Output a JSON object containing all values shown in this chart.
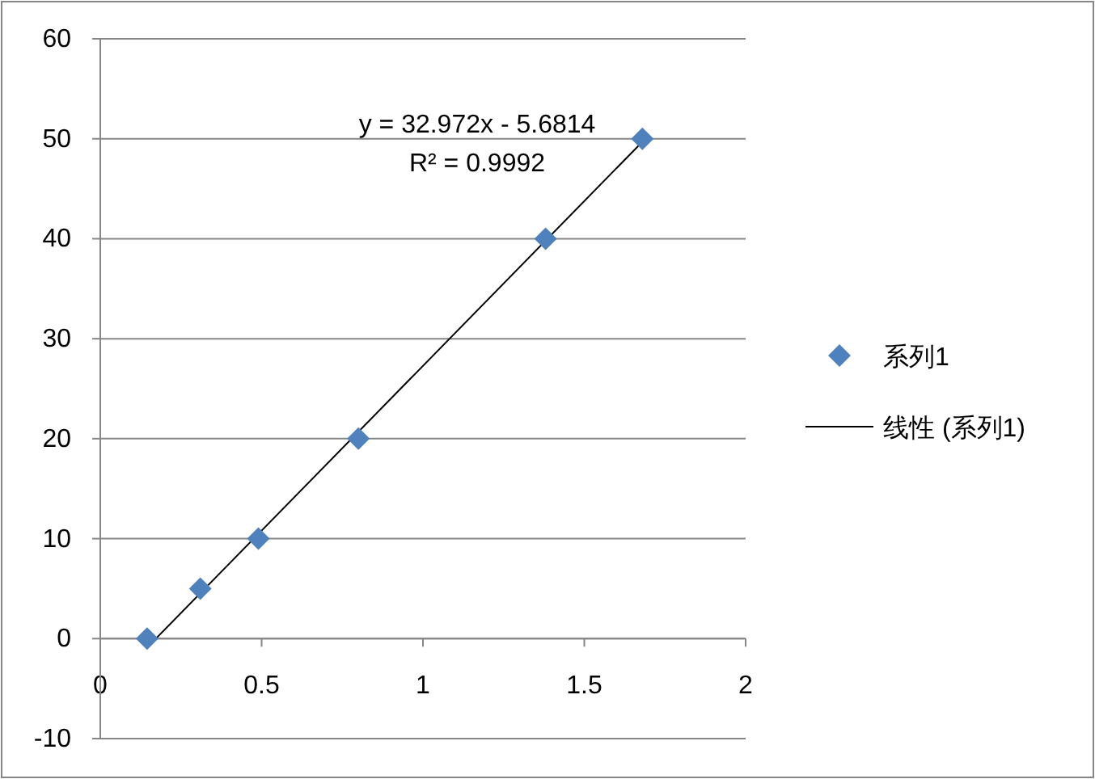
{
  "chart_data": {
    "type": "scatter",
    "xlim": [
      0,
      2
    ],
    "ylim": [
      -10,
      60
    ],
    "xticks": [
      0,
      0.5,
      1,
      1.5,
      2
    ],
    "yticks": [
      -10,
      0,
      10,
      20,
      30,
      40,
      50,
      60
    ],
    "grid": "y",
    "legend": "right",
    "series": [
      {
        "name": "系列1",
        "marker": "diamond",
        "color": "#4f81bd",
        "x": [
          0.145,
          0.31,
          0.49,
          0.8,
          1.38,
          1.68
        ],
        "values": [
          0,
          5,
          10,
          20,
          40,
          50
        ]
      },
      {
        "name": "线性 (系列1)",
        "type": "line",
        "marker": "none",
        "color": "#000000",
        "x": [
          0.145,
          1.68
        ],
        "values": [
          -0.9,
          49.7
        ]
      }
    ],
    "annotations": [
      "y = 32.972x - 5.6814",
      "R² = 0.9992"
    ]
  }
}
